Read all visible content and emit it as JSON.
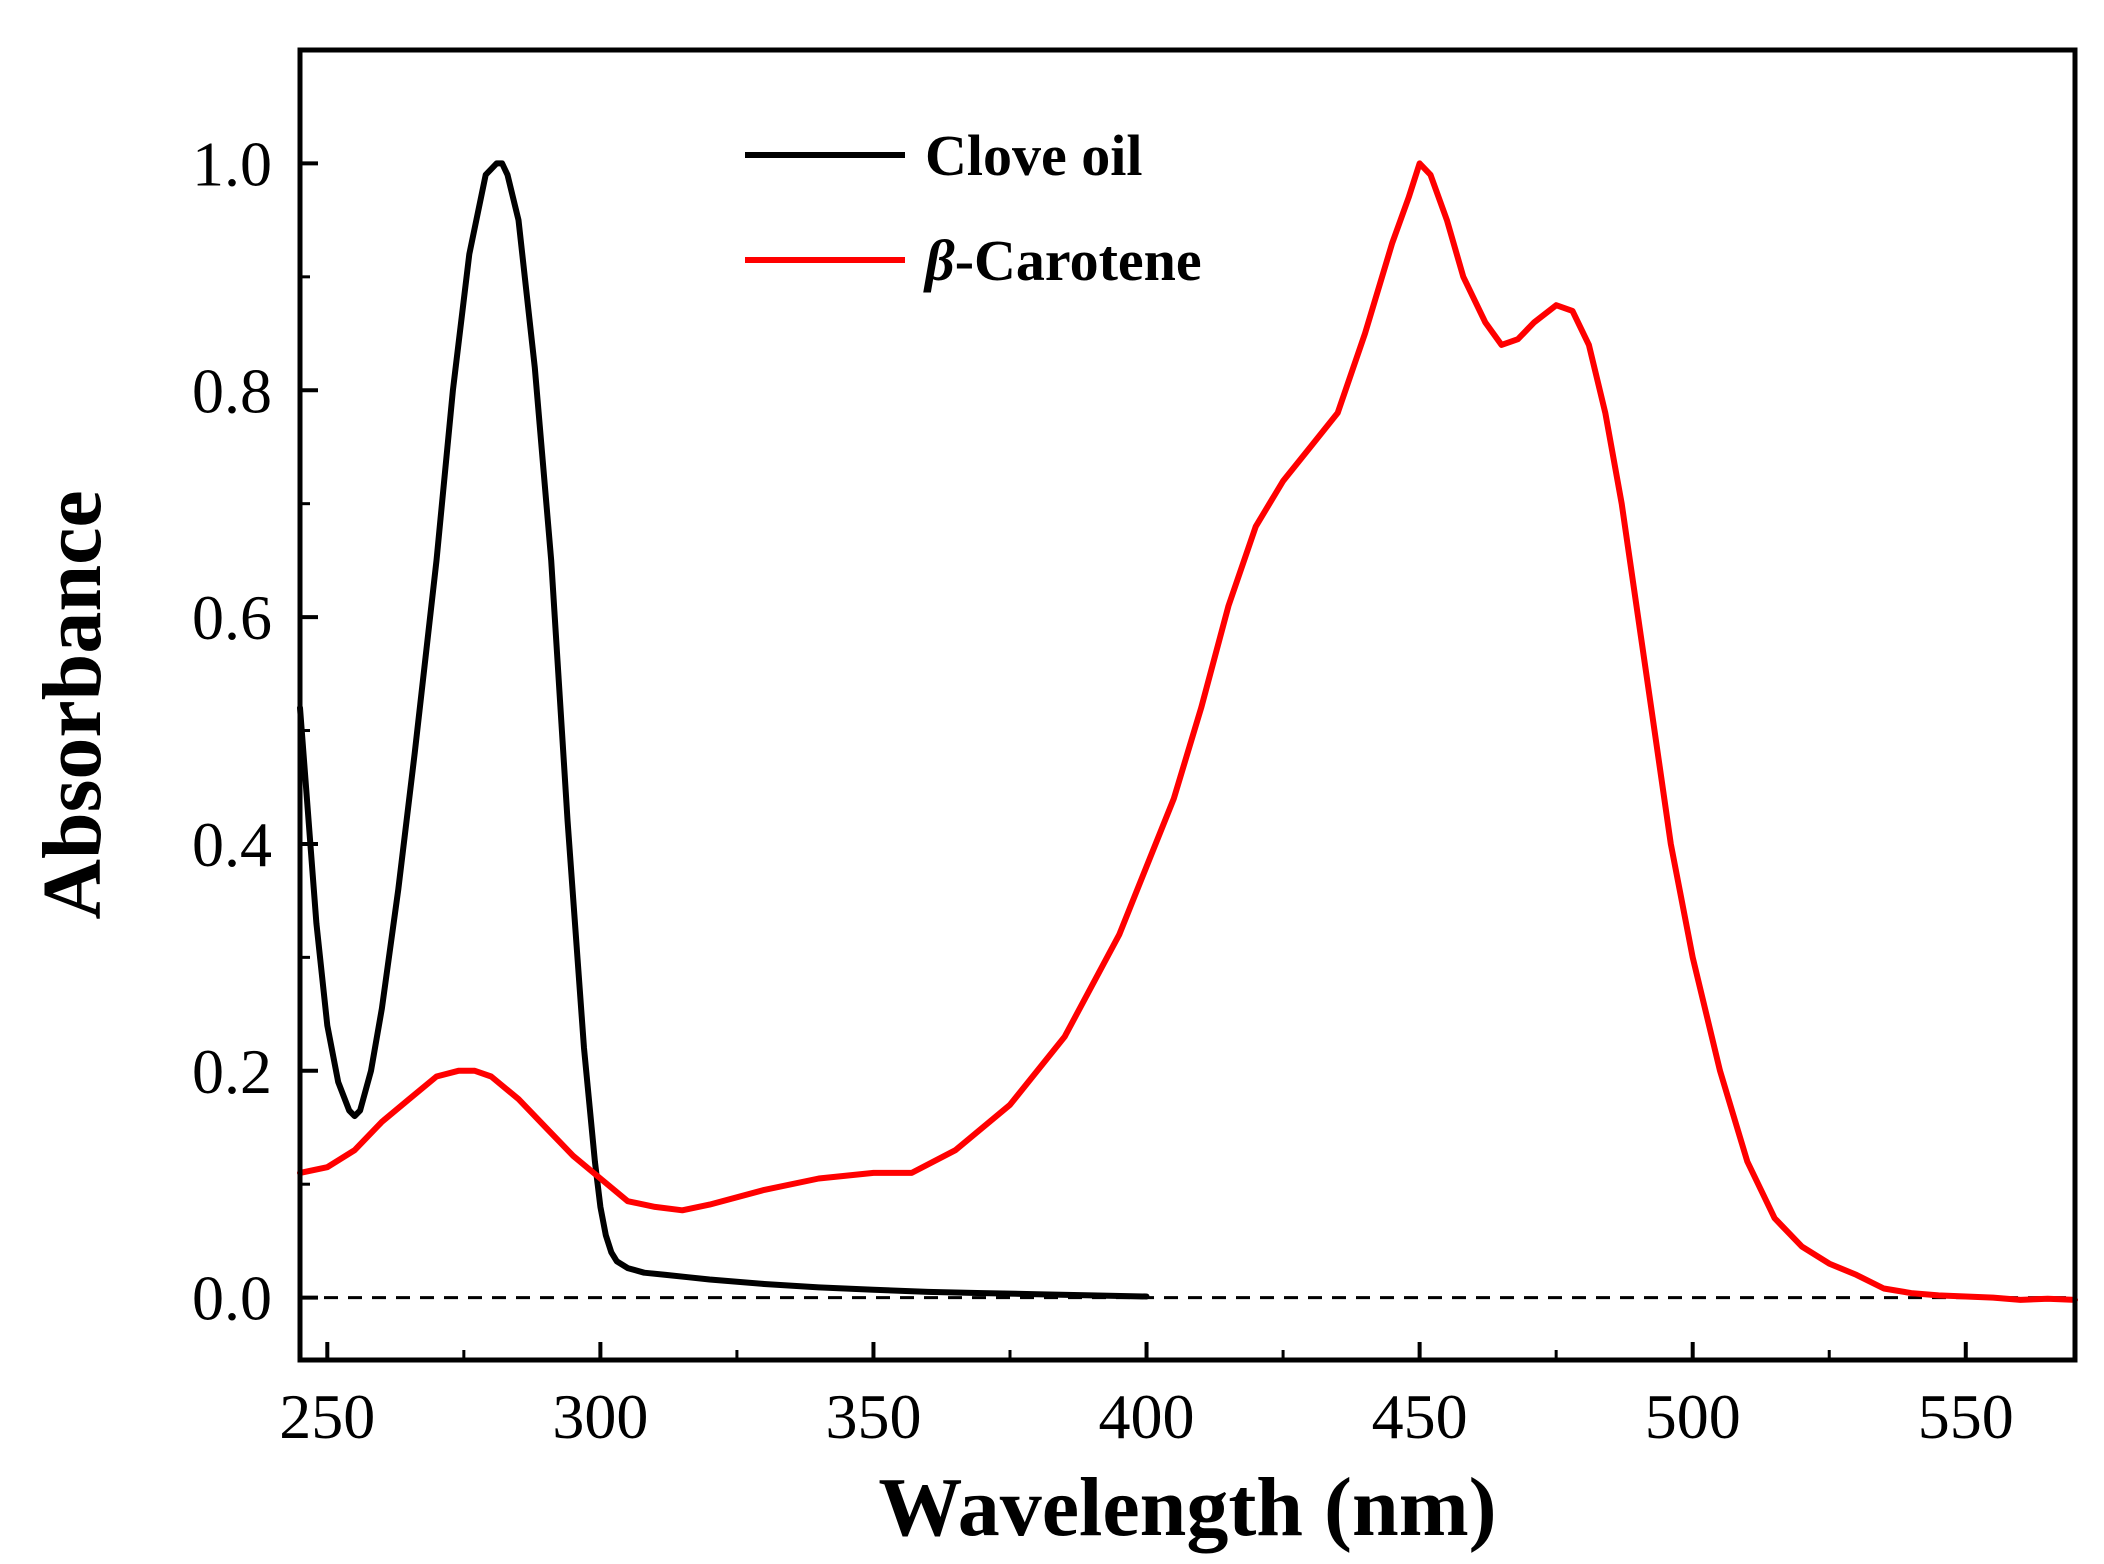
{
  "chart_data": {
    "type": "line",
    "title": "",
    "xlabel": "Wavelength (nm)",
    "ylabel": "Absorbance",
    "xlim": [
      245,
      570
    ],
    "ylim": [
      -0.055,
      1.1
    ],
    "xticks": [
      250,
      300,
      350,
      400,
      450,
      500,
      550
    ],
    "xtick_labels": [
      "250",
      "300",
      "350",
      "400",
      "450",
      "500",
      "550"
    ],
    "yticks": [
      0.0,
      0.2,
      0.4,
      0.6,
      0.8,
      1.0
    ],
    "ytick_labels": [
      "0.0",
      "0.2",
      "0.4",
      "0.6",
      "0.8",
      "1.0"
    ],
    "grid": false,
    "legend_position": "top-center",
    "baseline": {
      "y": 0.0,
      "style": "dashed"
    },
    "series": [
      {
        "name": "Clove oil",
        "color": "#000000",
        "x": [
          245,
          248,
          250,
          252,
          254,
          255,
          256,
          258,
          260,
          263,
          266,
          270,
          273,
          276,
          279,
          281,
          282,
          283,
          285,
          288,
          291,
          294,
          297,
          299,
          300,
          301,
          302,
          303,
          305,
          308,
          312,
          316,
          320,
          330,
          340,
          350,
          360,
          370,
          380,
          390,
          400
        ],
        "y": [
          0.52,
          0.33,
          0.24,
          0.19,
          0.165,
          0.16,
          0.165,
          0.2,
          0.255,
          0.36,
          0.48,
          0.65,
          0.8,
          0.92,
          0.99,
          1.0,
          1.0,
          0.99,
          0.95,
          0.82,
          0.65,
          0.42,
          0.22,
          0.12,
          0.08,
          0.055,
          0.04,
          0.032,
          0.026,
          0.022,
          0.02,
          0.018,
          0.016,
          0.012,
          0.009,
          0.007,
          0.005,
          0.004,
          0.003,
          0.002,
          0.001
        ]
      },
      {
        "name": "β-Carotene",
        "legend_symbol": "β",
        "legend_suffix": "-Carotene",
        "color": "#ff0000",
        "x": [
          245,
          250,
          255,
          260,
          265,
          270,
          274,
          277,
          280,
          285,
          290,
          295,
          300,
          305,
          310,
          315,
          320,
          330,
          340,
          350,
          357,
          365,
          375,
          385,
          395,
          400,
          405,
          410,
          415,
          420,
          425,
          430,
          435,
          440,
          445,
          448,
          450,
          452,
          455,
          458,
          462,
          465,
          468,
          471,
          475,
          478,
          481,
          484,
          487,
          490,
          493,
          496,
          500,
          505,
          510,
          515,
          520,
          525,
          530,
          535,
          540,
          545,
          550,
          555,
          560,
          565,
          570
        ],
        "y": [
          0.11,
          0.115,
          0.13,
          0.155,
          0.175,
          0.195,
          0.2,
          0.2,
          0.195,
          0.175,
          0.15,
          0.125,
          0.105,
          0.085,
          0.08,
          0.077,
          0.082,
          0.095,
          0.105,
          0.11,
          0.11,
          0.13,
          0.17,
          0.23,
          0.32,
          0.38,
          0.44,
          0.52,
          0.61,
          0.68,
          0.72,
          0.75,
          0.78,
          0.85,
          0.93,
          0.97,
          1.0,
          0.99,
          0.95,
          0.9,
          0.86,
          0.84,
          0.845,
          0.86,
          0.875,
          0.87,
          0.84,
          0.78,
          0.7,
          0.6,
          0.5,
          0.4,
          0.3,
          0.2,
          0.12,
          0.07,
          0.045,
          0.03,
          0.02,
          0.008,
          0.004,
          0.002,
          0.001,
          0.0,
          -0.002,
          -0.001,
          -0.002
        ]
      }
    ]
  }
}
